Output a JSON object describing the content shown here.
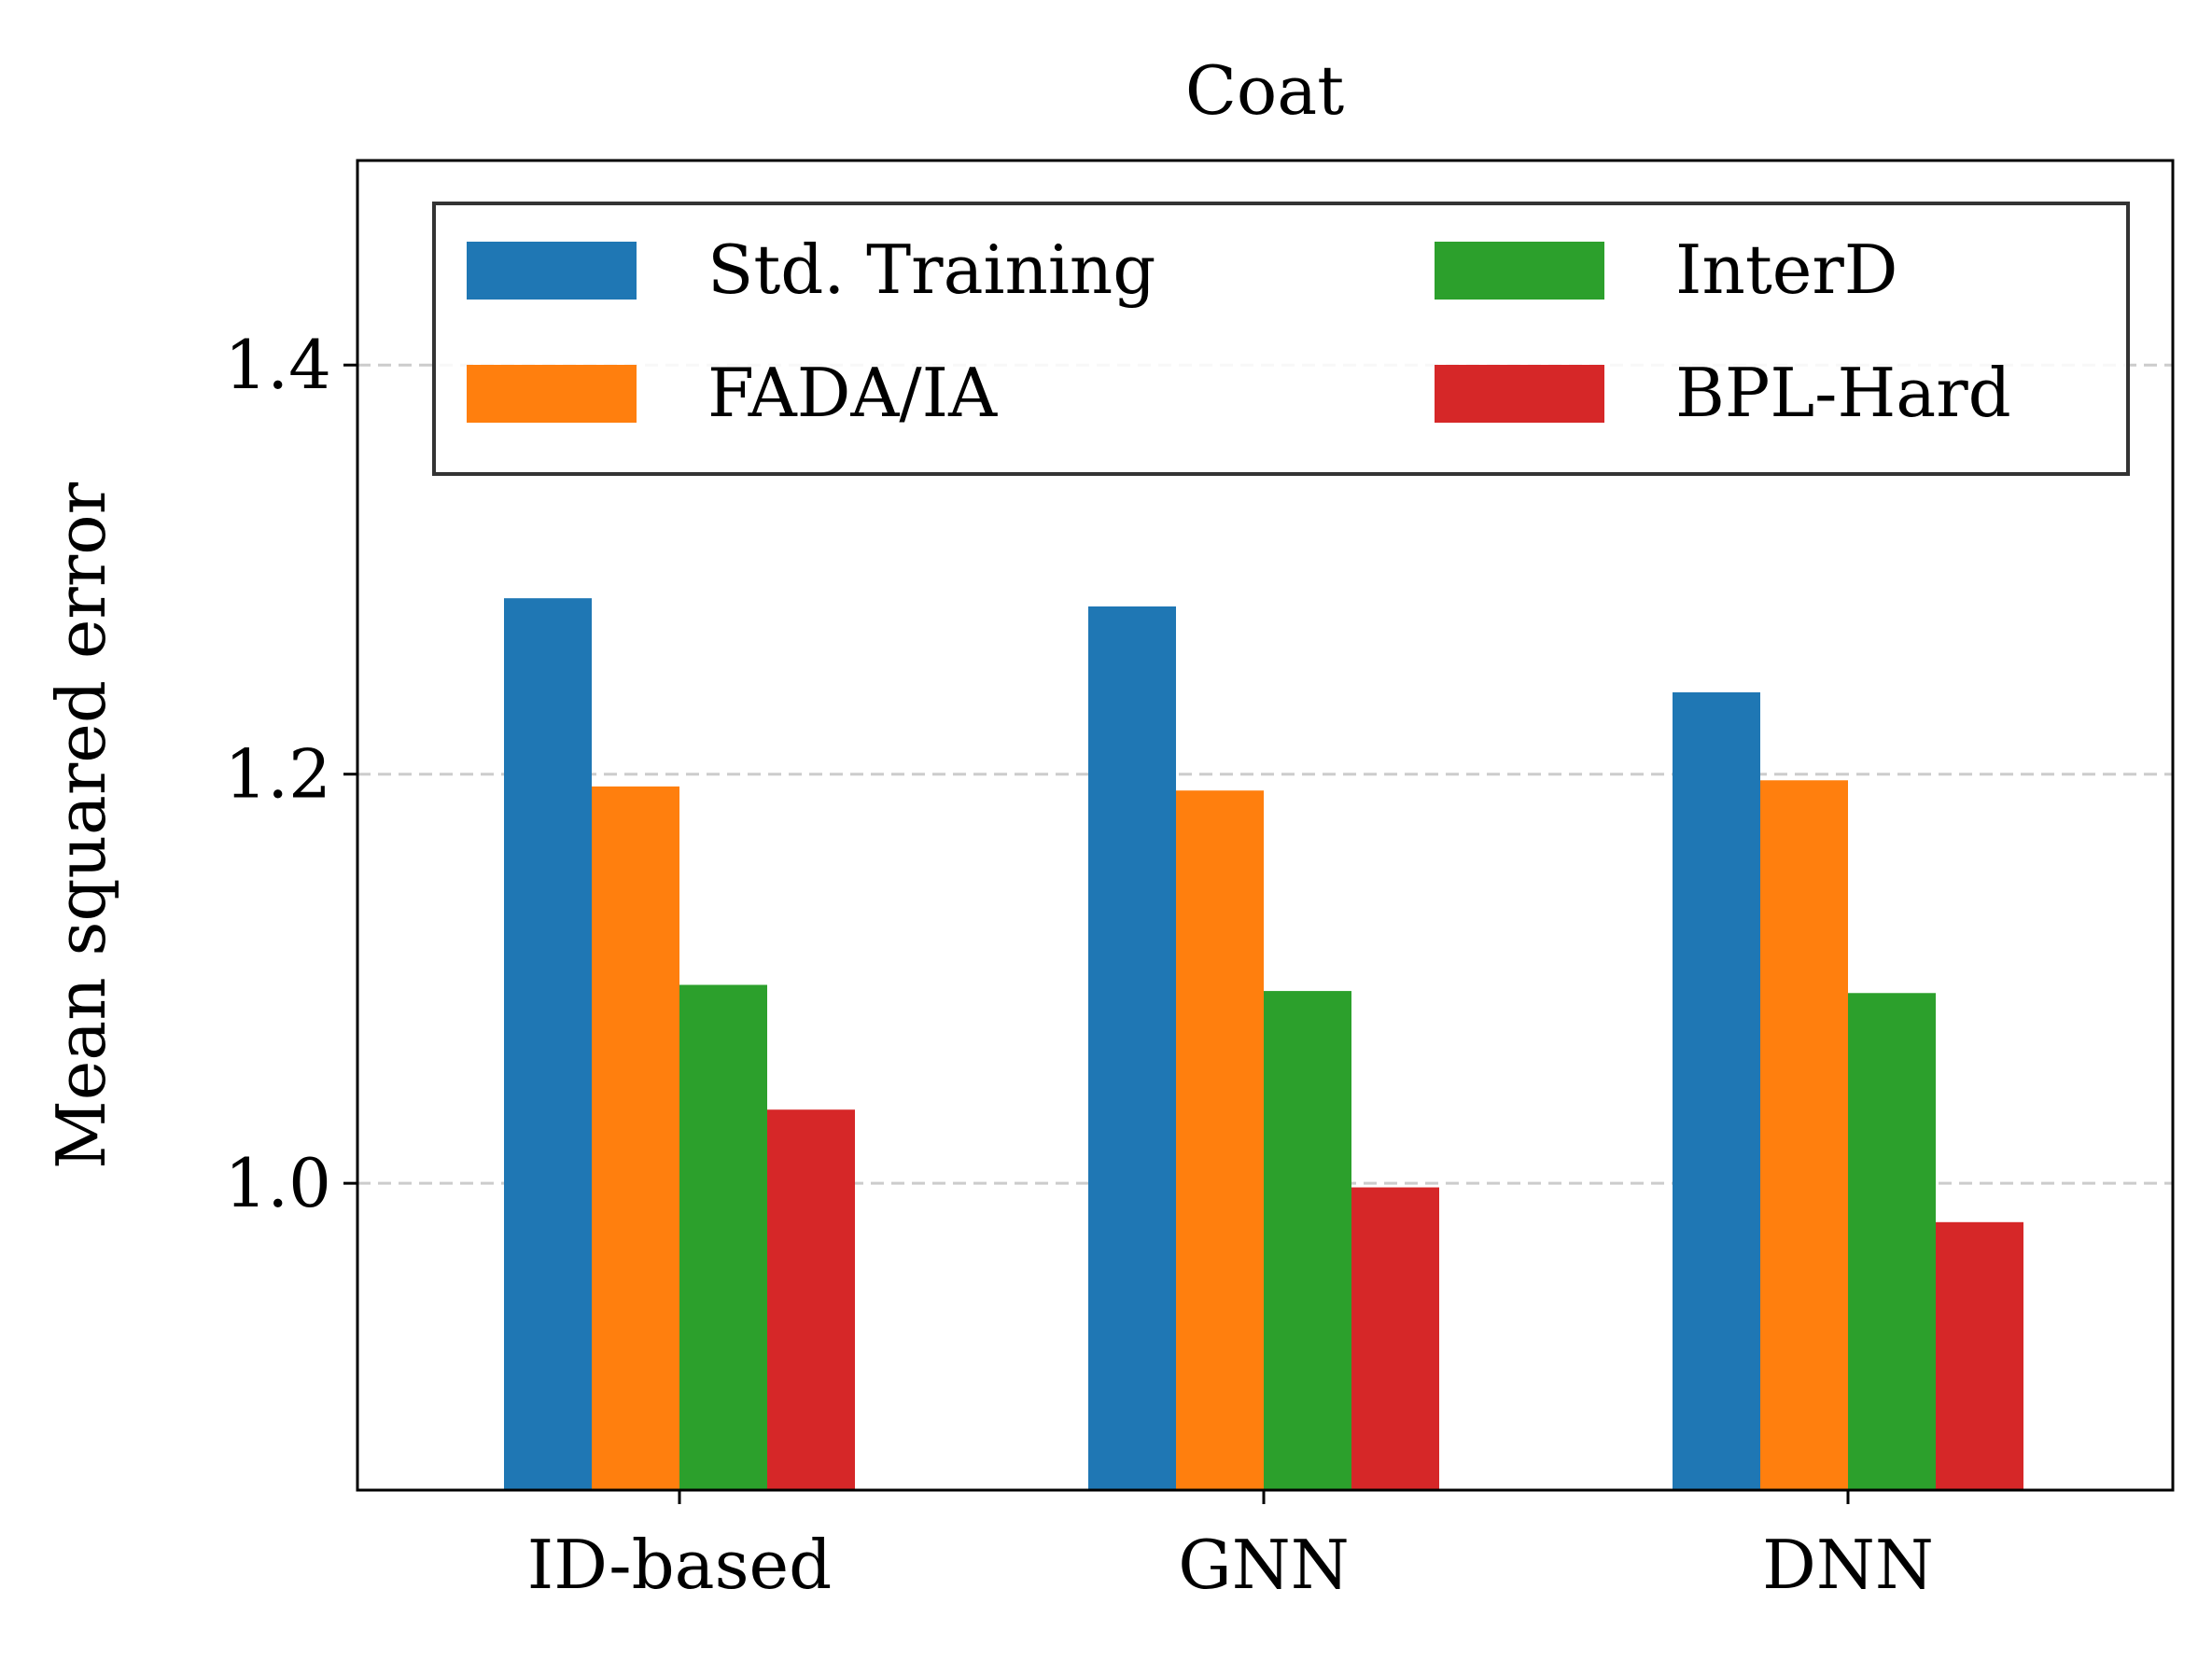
{
  "chart_data": {
    "type": "bar",
    "title": "Coat",
    "xlabel": "",
    "ylabel": "Mean squared error",
    "categories": [
      "ID-based",
      "GNN",
      "DNN"
    ],
    "ylim": [
      0.85,
      1.5
    ],
    "yticks": [
      1.0,
      1.2,
      1.4
    ],
    "ytick_labels": [
      "1.0",
      "1.2",
      "1.4"
    ],
    "grid": true,
    "legend_position": "top-right",
    "series": [
      {
        "name": "Std. Training",
        "color": "#1f77b4",
        "values": [
          1.286,
          1.282,
          1.24
        ]
      },
      {
        "name": "FADA/IA",
        "color": "#ff7f0e",
        "values": [
          1.194,
          1.192,
          1.197
        ]
      },
      {
        "name": "InterD",
        "color": "#2ca02c",
        "values": [
          1.097,
          1.094,
          1.093
        ]
      },
      {
        "name": "BPL-Hard",
        "color": "#d62728",
        "values": [
          1.036,
          0.998,
          0.981
        ]
      }
    ]
  }
}
